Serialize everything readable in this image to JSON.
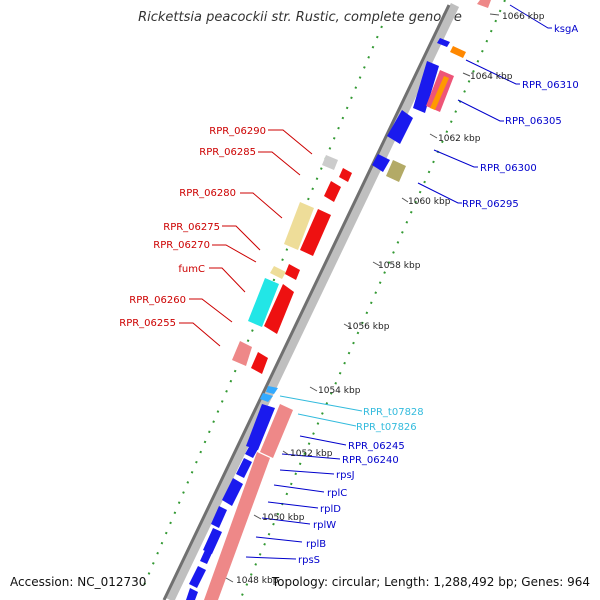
{
  "title": "Rickettsia peacockii str. Rustic, complete genome",
  "footer": {
    "accession": "Accession: NC_012730",
    "summary": "Topology: circular; Length: 1,288,492 bp; Genes: 964"
  },
  "kbp_labels": [
    "1066 kbp",
    "1064 kbp",
    "1062 kbp",
    "1060 kbp",
    "1058 kbp",
    "1056 kbp",
    "1054 kbp",
    "1052 kbp",
    "1050 kbp",
    "1048 kbp"
  ],
  "genes_left": [
    {
      "label": "RPR_06290",
      "color": "#cc0000"
    },
    {
      "label": "RPR_06285",
      "color": "#cc0000"
    },
    {
      "label": "RPR_06280",
      "color": "#cc0000"
    },
    {
      "label": "RPR_06275",
      "color": "#cc0000"
    },
    {
      "label": "RPR_06270",
      "color": "#cc0000"
    },
    {
      "label": "fumC",
      "color": "#cc0000"
    },
    {
      "label": "RPR_06260",
      "color": "#cc0000"
    },
    {
      "label": "RPR_06255",
      "color": "#cc0000"
    }
  ],
  "genes_right": [
    {
      "label": "ksgA",
      "color": "#0000cc"
    },
    {
      "label": "RPR_06310",
      "color": "#0000cc"
    },
    {
      "label": "RPR_06305",
      "color": "#0000cc"
    },
    {
      "label": "RPR_06300",
      "color": "#0000cc"
    },
    {
      "label": "RPR_06295",
      "color": "#0000cc"
    },
    {
      "label": "RPR_t07828",
      "color": "#33bbdd"
    },
    {
      "label": "RPR_t07826",
      "color": "#33bbdd"
    },
    {
      "label": "RPR_06245",
      "color": "#0000cc"
    },
    {
      "label": "RPR_06240",
      "color": "#0000cc"
    },
    {
      "label": "rpsJ",
      "color": "#0000cc"
    },
    {
      "label": "rplC",
      "color": "#0000cc"
    },
    {
      "label": "rplD",
      "color": "#0000cc"
    },
    {
      "label": "rplW",
      "color": "#0000cc"
    },
    {
      "label": "rplB",
      "color": "#0000cc"
    },
    {
      "label": "rpsS",
      "color": "#0000cc"
    }
  ]
}
